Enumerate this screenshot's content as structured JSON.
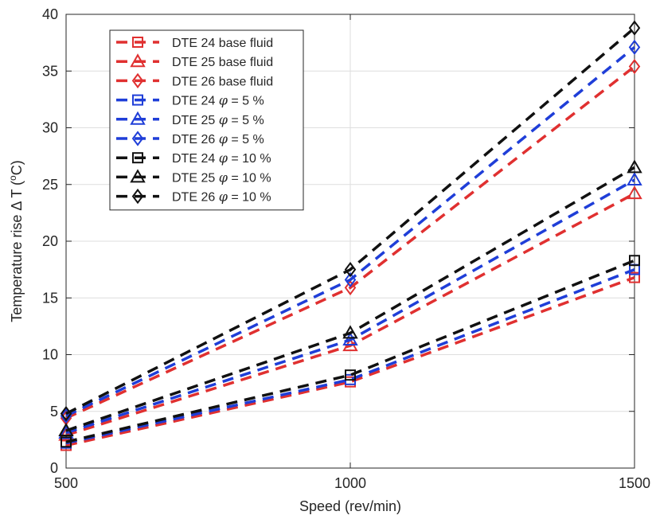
{
  "chart_data": {
    "type": "line",
    "x": [
      500,
      1000,
      1500
    ],
    "xlabel": "Speed (rev/min)",
    "ylabel_parts": [
      "Temperature rise ",
      "Δ",
      " T (",
      "o",
      "C)"
    ],
    "xlim": [
      500,
      1500
    ],
    "ylim": [
      0,
      40
    ],
    "xticks": [
      500,
      1000,
      1500
    ],
    "yticks": [
      0,
      5,
      10,
      15,
      20,
      25,
      30,
      35,
      40
    ],
    "grid": true,
    "legend_position": "top-left",
    "series": [
      {
        "name": "DTE 24 base fluid",
        "legend_parts": [
          "DTE 24 base fluid"
        ],
        "color": "#e03030",
        "marker": "square",
        "values": [
          2.0,
          7.6,
          16.8
        ]
      },
      {
        "name": "DTE 25 base fluid",
        "legend_parts": [
          "DTE 25 base fluid"
        ],
        "color": "#e03030",
        "marker": "triangle",
        "values": [
          2.9,
          10.8,
          24.2
        ]
      },
      {
        "name": "DTE 26 base fluid",
        "legend_parts": [
          "DTE 26 base fluid"
        ],
        "color": "#e03030",
        "marker": "diamond",
        "values": [
          4.4,
          15.9,
          35.4
        ]
      },
      {
        "name": "DTE 24 φ = 5 %",
        "legend_parts": [
          "DTE 24 ",
          "φ",
          " = 5 %"
        ],
        "color": "#1f3ed8",
        "marker": "square",
        "values": [
          2.2,
          7.8,
          17.5
        ]
      },
      {
        "name": "DTE 25 φ = 5 %",
        "legend_parts": [
          "DTE 25 ",
          "φ",
          " = 5 %"
        ],
        "color": "#1f3ed8",
        "marker": "triangle",
        "values": [
          3.1,
          11.3,
          25.4
        ]
      },
      {
        "name": "DTE 26 φ = 5 %",
        "legend_parts": [
          "DTE 26 ",
          "φ",
          " = 5 %"
        ],
        "color": "#1f3ed8",
        "marker": "diamond",
        "values": [
          4.6,
          16.6,
          37.1
        ]
      },
      {
        "name": "DTE 24 φ = 10 %",
        "legend_parts": [
          "DTE 24 ",
          "φ",
          " = 10 %"
        ],
        "color": "#111111",
        "marker": "square",
        "values": [
          2.3,
          8.2,
          18.3
        ]
      },
      {
        "name": "DTE 25 φ = 10 %",
        "legend_parts": [
          "DTE 25 ",
          "φ",
          " = 10 %"
        ],
        "color": "#111111",
        "marker": "triangle",
        "values": [
          3.3,
          11.9,
          26.5
        ]
      },
      {
        "name": "DTE 26 φ = 10 %",
        "legend_parts": [
          "DTE 26 ",
          "φ",
          " = 10 %"
        ],
        "color": "#111111",
        "marker": "diamond",
        "values": [
          4.8,
          17.5,
          38.8
        ]
      }
    ]
  }
}
